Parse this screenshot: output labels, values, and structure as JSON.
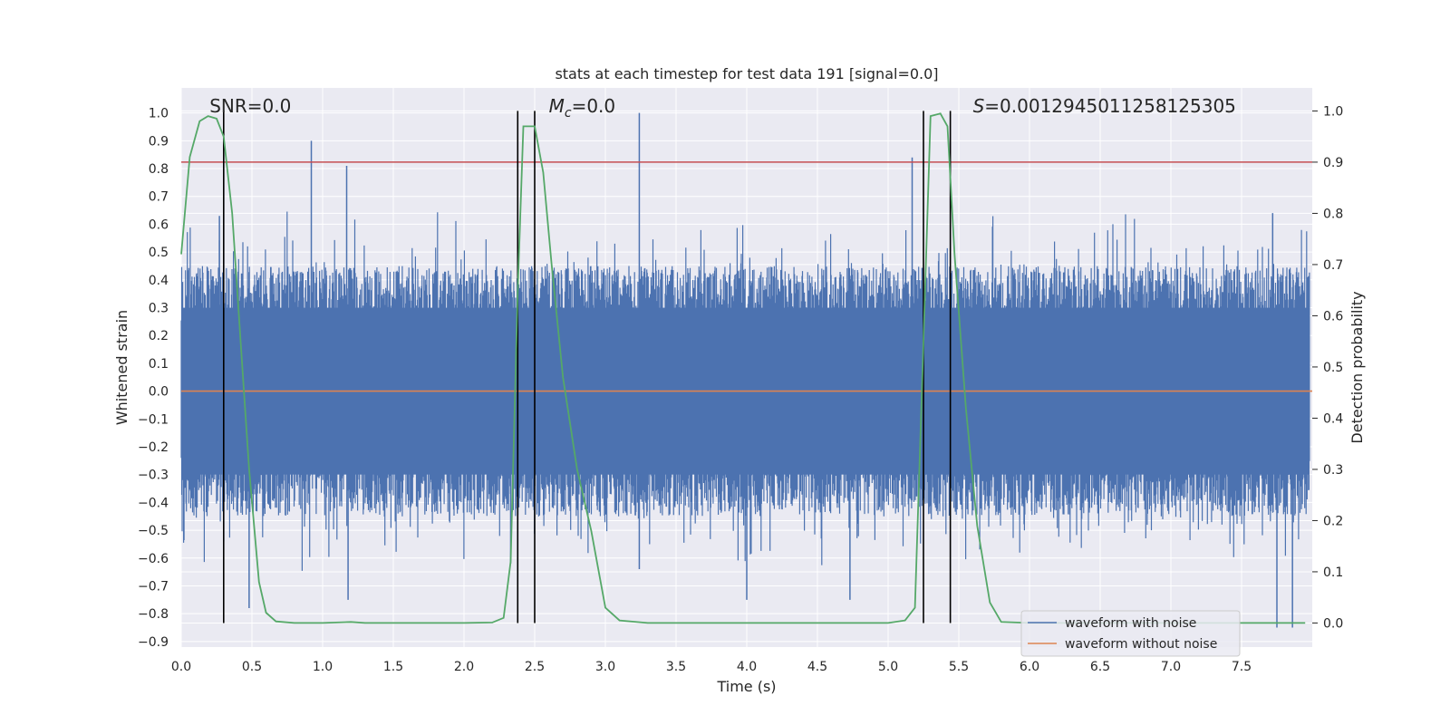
{
  "chart_data": {
    "type": "line",
    "title": "stats at each timestep for test data 191 [signal=0.0]",
    "xlabel": "Time (s)",
    "ylabel": "Whitened strain",
    "y2label": "Detection probability",
    "xlim": [
      0.0,
      8.0
    ],
    "ylim": [
      -0.92,
      1.09
    ],
    "y2lim": [
      -0.047,
      1.045
    ],
    "xticks": [
      "0.0",
      "0.5",
      "1.0",
      "1.5",
      "2.0",
      "2.5",
      "3.0",
      "3.5",
      "4.0",
      "4.5",
      "5.0",
      "5.5",
      "6.0",
      "6.5",
      "7.0",
      "7.5"
    ],
    "xtick_values": [
      0.0,
      0.5,
      1.0,
      1.5,
      2.0,
      2.5,
      3.0,
      3.5,
      4.0,
      4.5,
      5.0,
      5.5,
      6.0,
      6.5,
      7.0,
      7.5
    ],
    "yticks": [
      "1.0",
      "0.9",
      "0.8",
      "0.7",
      "0.6",
      "0.5",
      "0.4",
      "0.3",
      "0.2",
      "0.1",
      "0.0",
      "−0.1",
      "−0.2",
      "−0.3",
      "−0.4",
      "−0.5",
      "−0.6",
      "−0.7",
      "−0.8",
      "−0.9"
    ],
    "ytick_values": [
      1.0,
      0.9,
      0.8,
      0.7,
      0.6,
      0.5,
      0.4,
      0.3,
      0.2,
      0.1,
      0.0,
      -0.1,
      -0.2,
      -0.3,
      -0.4,
      -0.5,
      -0.6,
      -0.7,
      -0.8,
      -0.9
    ],
    "y2ticks": [
      "1.0",
      "0.9",
      "0.8",
      "0.7",
      "0.6",
      "0.5",
      "0.4",
      "0.3",
      "0.2",
      "0.1",
      "0.0"
    ],
    "y2tick_values": [
      1.0,
      0.9,
      0.8,
      0.7,
      0.6,
      0.5,
      0.4,
      0.3,
      0.2,
      0.1,
      0.0
    ],
    "annotations": [
      {
        "text": "SNR=0.0",
        "x": 0.2
      },
      {
        "text_main": "M",
        "text_sub": "c",
        "text_rest": "=0.0",
        "x": 2.6
      },
      {
        "text_main": "S",
        "text_rest": "=0.0012945011258125305",
        "x": 5.6
      }
    ],
    "threshold": {
      "name": "threshold",
      "y2": 0.9,
      "color": "#c44e52"
    },
    "vertical_lines": [
      0.3,
      2.38,
      2.5,
      5.25,
      5.44
    ],
    "noisy_waveform": {
      "name": "waveform with noise",
      "color": "#4c72b0",
      "typical_max": 0.45,
      "typical_min": -0.45,
      "spikes": [
        {
          "x": 0.3,
          "y": 0.86
        },
        {
          "x": 0.3,
          "y": -0.54
        },
        {
          "x": 0.92,
          "y": 0.9
        },
        {
          "x": 1.17,
          "y": 0.81
        },
        {
          "x": 3.24,
          "y": 1.0
        },
        {
          "x": 3.24,
          "y": -0.64
        },
        {
          "x": 5.17,
          "y": 0.84
        },
        {
          "x": 2.33,
          "y": -0.62
        },
        {
          "x": 0.48,
          "y": -0.78
        },
        {
          "x": 1.18,
          "y": -0.75
        },
        {
          "x": 4.0,
          "y": -0.75
        },
        {
          "x": 4.73,
          "y": -0.75
        },
        {
          "x": 7.75,
          "y": -0.85
        },
        {
          "x": 7.86,
          "y": -0.85
        },
        {
          "x": 0.27,
          "y": 0.63
        },
        {
          "x": 7.72,
          "y": 0.64
        }
      ]
    },
    "clean_waveform": {
      "name": "waveform without noise",
      "color": "#dd8452",
      "y": 0.0
    },
    "detection_probability": {
      "name": "detection probability",
      "color": "#55a868",
      "x": [
        0.0,
        0.06,
        0.13,
        0.19,
        0.25,
        0.3,
        0.36,
        0.42,
        0.48,
        0.55,
        0.6,
        0.67,
        0.8,
        1.0,
        1.2,
        1.3,
        1.6,
        2.0,
        2.2,
        2.28,
        2.33,
        2.38,
        2.42,
        2.5,
        2.56,
        2.62,
        2.7,
        2.8,
        2.9,
        3.0,
        3.1,
        3.3,
        3.6,
        4.0,
        4.5,
        5.0,
        5.12,
        5.19,
        5.25,
        5.3,
        5.37,
        5.42,
        5.47,
        5.55,
        5.63,
        5.72,
        5.8,
        6.0,
        6.5,
        7.0,
        7.5,
        7.95
      ],
      "y": [
        0.72,
        0.91,
        0.98,
        0.99,
        0.985,
        0.95,
        0.8,
        0.55,
        0.3,
        0.08,
        0.02,
        0.003,
        0.0,
        0.0,
        0.002,
        0.0,
        0.0,
        0.0,
        0.001,
        0.01,
        0.12,
        0.65,
        0.97,
        0.97,
        0.88,
        0.7,
        0.48,
        0.3,
        0.18,
        0.03,
        0.005,
        0.0,
        0.0,
        0.0,
        0.0,
        0.0,
        0.005,
        0.03,
        0.55,
        0.99,
        0.995,
        0.97,
        0.72,
        0.42,
        0.19,
        0.04,
        0.002,
        0.0,
        0.0,
        0.0,
        0.0,
        0.0
      ]
    },
    "legend": {
      "placement": "lower-right",
      "entries": [
        "waveform with noise",
        "waveform without noise"
      ]
    }
  }
}
